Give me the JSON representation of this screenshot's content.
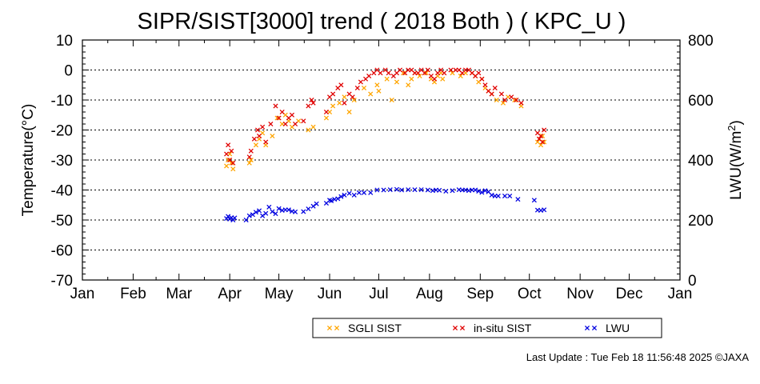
{
  "chart_data": {
    "type": "scatter",
    "title": "SIPR/SIST[3000] trend ( 2018 Both ) ( KPC_U )",
    "ylabel": "Temperature(°C)",
    "y2label": "LWU(W/m²)",
    "x_ticks": [
      "Jan",
      "Feb",
      "Mar",
      "Apr",
      "May",
      "Jun",
      "Jul",
      "Aug",
      "Sep",
      "Oct",
      "Nov",
      "Dec",
      "Jan"
    ],
    "xlim": [
      0,
      365
    ],
    "ylim": [
      -70,
      10
    ],
    "y2lim": [
      0,
      800
    ],
    "y_ticks": [
      10,
      0,
      -10,
      -20,
      -30,
      -40,
      -50,
      -60,
      -70
    ],
    "y2_ticks": [
      800,
      600,
      400,
      200,
      0
    ],
    "grid": "horizontal dotted",
    "legend_position": "bottom",
    "colors": {
      "sgli": "#ffa500",
      "insitu": "#e00000",
      "lwu": "#0000e0"
    },
    "series": [
      {
        "name": "SGLI SIST",
        "marker": "x",
        "x": [
          88,
          89,
          90,
          91,
          92,
          102,
          103,
          106,
          108,
          110,
          112,
          116,
          119,
          122,
          124,
          126,
          128,
          132,
          138,
          141,
          149,
          151,
          153,
          157,
          160,
          163,
          166,
          172,
          176,
          180,
          181,
          186,
          189,
          192,
          196,
          199,
          201,
          203,
          206,
          210,
          213,
          215,
          217,
          219,
          220,
          226,
          231,
          234,
          238,
          240,
          242,
          244,
          246,
          248,
          250,
          253,
          257,
          260,
          264,
          268,
          278,
          279,
          280,
          281,
          282
        ],
        "y": [
          -32,
          -30,
          -28,
          -31,
          -33,
          -31,
          -30,
          -25,
          -23,
          -21,
          -25,
          -22,
          -16,
          -18,
          -15,
          -17,
          -19,
          -17,
          -20,
          -19,
          -16,
          -14,
          -12,
          -11,
          -9,
          -14,
          -10,
          -6,
          -8,
          -5,
          -7,
          -3,
          -10,
          -4,
          -1,
          -5,
          -3,
          -1,
          -2,
          -1,
          -3,
          -4,
          -2,
          -1,
          -3,
          -1,
          -2,
          -1,
          -1,
          -2,
          -4,
          -3,
          -6,
          -7,
          -8,
          -10,
          -11,
          -9,
          -10,
          -12,
          -24,
          -23,
          -25,
          -22,
          -24
        ]
      },
      {
        "name": "in-situ SIST",
        "marker": "x",
        "x": [
          88,
          89,
          90,
          91,
          92,
          102,
          103,
          105,
          107,
          108,
          110,
          112,
          115,
          118,
          120,
          122,
          124,
          126,
          128,
          130,
          135,
          138,
          140,
          141,
          149,
          151,
          153,
          156,
          158,
          160,
          163,
          165,
          168,
          170,
          173,
          175,
          178,
          180,
          182,
          185,
          187,
          190,
          192,
          194,
          197,
          199,
          201,
          203,
          205,
          207,
          209,
          211,
          213,
          215,
          217,
          219,
          221,
          225,
          228,
          230,
          232,
          234,
          236,
          238,
          240,
          242,
          244,
          246,
          248,
          250,
          252,
          256,
          258,
          262,
          265,
          268,
          278,
          279,
          280,
          281,
          282
        ],
        "y": [
          -28,
          -25,
          -30,
          -27,
          -31,
          -29,
          -27,
          -23,
          -20,
          -22,
          -19,
          -24,
          -18,
          -12,
          -16,
          -14,
          -18,
          -16,
          -15,
          -18,
          -17,
          -12,
          -10,
          -11,
          -14,
          -9,
          -8,
          -6,
          -5,
          -11,
          -8,
          -9,
          -6,
          -4,
          -3,
          -2,
          -1,
          0,
          -1,
          0,
          -1,
          -2,
          -1,
          0,
          -1,
          0,
          0,
          -1,
          -1,
          0,
          -1,
          0,
          -2,
          -3,
          -1,
          0,
          -1,
          0,
          0,
          0,
          -1,
          0,
          0,
          -1,
          -2,
          -1,
          -3,
          -5,
          -7,
          -8,
          -6,
          -8,
          -10,
          -9,
          -10,
          -11,
          -21,
          -23,
          -22,
          -24,
          -20
        ]
      },
      {
        "name": "LWU",
        "marker": "x",
        "x": [
          88,
          89,
          90,
          91,
          92,
          93,
          100,
          102,
          104,
          106,
          108,
          110,
          112,
          114,
          116,
          118,
          120,
          122,
          124,
          126,
          128,
          130,
          135,
          138,
          141,
          143,
          149,
          151,
          152,
          154,
          156,
          158,
          160,
          163,
          166,
          169,
          172,
          176,
          180,
          184,
          188,
          192,
          195,
          199,
          203,
          207,
          211,
          214,
          216,
          218,
          222,
          226,
          230,
          232,
          234,
          236,
          238,
          240,
          242,
          244,
          246,
          248,
          250,
          252,
          254,
          258,
          261,
          266,
          276,
          278,
          280,
          282
        ],
        "y": [
          205,
          212,
          203,
          208,
          200,
          207,
          200,
          214,
          218,
          226,
          231,
          214,
          222,
          243,
          228,
          221,
          238,
          232,
          234,
          234,
          229,
          227,
          228,
          237,
          246,
          254,
          256,
          266,
          264,
          269,
          271,
          278,
          283,
          289,
          283,
          291,
          291,
          291,
          300,
          300,
          301,
          302,
          300,
          301,
          301,
          301,
          300,
          298,
          300,
          299,
          296,
          298,
          301,
          300,
          300,
          298,
          300,
          300,
          296,
          292,
          298,
          294,
          283,
          280,
          280,
          280,
          280,
          269,
          266,
          233,
          232,
          234
        ]
      }
    ],
    "footer": "Last Update : Tue Feb 18 11:56:48 2025  ©JAXA"
  }
}
